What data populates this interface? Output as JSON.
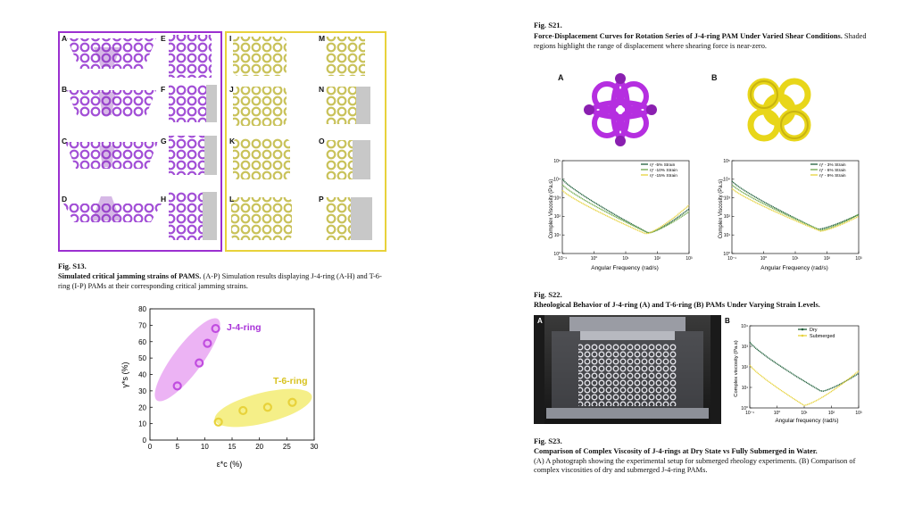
{
  "fig_s13": {
    "panel_letters": [
      "A",
      "B",
      "C",
      "D",
      "E",
      "F",
      "G",
      "H",
      "I",
      "J",
      "K",
      "L",
      "M",
      "N",
      "O",
      "P"
    ],
    "label": "Fig. S13.",
    "title": "Simulated critical jamming strains of PAMS.",
    "body": " (A-P) Simulation results displaying J-4-ring (A-H) and T-6-ring (I-P) PAMs at their corresponding critical jamming strains.",
    "colors": {
      "purple": "#9b30d0",
      "yellow": "#e8d23a"
    }
  },
  "jam_chart": {
    "chart_data": {
      "type": "scatter",
      "xlabel": "ε*c (%)",
      "ylabel": "γ*s (%)",
      "xlim": [
        0,
        30
      ],
      "ylim": [
        0,
        80
      ],
      "xticks": [
        "0",
        "5",
        "10",
        "15",
        "20",
        "25",
        "30"
      ],
      "yticks": [
        "0",
        "10",
        "20",
        "30",
        "40",
        "50",
        "60",
        "70",
        "80"
      ],
      "series": [
        {
          "name": "J-4-ring",
          "color": "#c14de0",
          "x": [
            5,
            9,
            10.5,
            12
          ],
          "y": [
            33,
            47,
            59,
            68
          ]
        },
        {
          "name": "T-6-ring",
          "color": "#e8d23a",
          "x": [
            12.5,
            17,
            21.5,
            26
          ],
          "y": [
            11,
            18,
            20,
            23
          ]
        }
      ]
    }
  },
  "fig_s21": {
    "label": "Fig. S21.",
    "title": "Force-Displacement Curves for Rotation Series of J-4-ring PAM Under Varied Shear Conditions.",
    "body": " Shaded regions highlight the range of displacement where shearing force is near-zero.",
    "panel_a": "A",
    "panel_b": "B",
    "chart_a": {
      "chart_data": {
        "type": "line",
        "xlabel": "Angular Frequency (rad/s)",
        "ylabel": "Complex Viscosity (Pa.s)",
        "log_x": true,
        "log_y": true,
        "xticks": [
          "10⁻¹",
          "10⁰",
          "10¹",
          "10²",
          "10³"
        ],
        "yticks": [
          "10⁰",
          "10¹",
          "10²",
          "10³",
          "10⁴",
          "10⁵"
        ],
        "legend": "top-right",
        "series": [
          {
            "name": "η* -5% Strain",
            "color": "#1f5f3a"
          },
          {
            "name": "η* -10% Strain",
            "color": "#6ea84a"
          },
          {
            "name": "η* -15% Strain",
            "color": "#e6d23c"
          }
        ]
      }
    },
    "chart_b": {
      "chart_data": {
        "type": "line",
        "xlabel": "Angular Frequency (rad/s)",
        "ylabel": "Complex Viscosity (Pa.s)",
        "log_x": true,
        "log_y": true,
        "xticks": [
          "10⁻¹",
          "10⁰",
          "10¹",
          "10²",
          "10³"
        ],
        "yticks": [
          "10⁰",
          "10¹",
          "10²",
          "10³",
          "10⁴",
          "10⁵"
        ],
        "legend": "top-right",
        "series": [
          {
            "name": "η* - 3% Strain",
            "color": "#1f5f3a"
          },
          {
            "name": "η* - 6% Strain",
            "color": "#6ea84a"
          },
          {
            "name": "η* - 9% Strain",
            "color": "#e6d23c"
          }
        ]
      }
    }
  },
  "fig_s22": {
    "label": "Fig. S22.",
    "title": "Rheological Behavior of J-4-ring (A) and T-6-ring (B) PAMs Under Varying Strain Levels."
  },
  "fig_s23_panels": {
    "panel_a": "A",
    "panel_b": "B",
    "chart": {
      "chart_data": {
        "type": "line",
        "xlabel": "Angular frequency (rad/s)",
        "ylabel": "Complex viscosity (Pa.s)",
        "log_x": true,
        "log_y": true,
        "xticks": [
          "10⁻¹",
          "10⁰",
          "10¹",
          "10²",
          "10³"
        ],
        "yticks": [
          "10⁰",
          "10¹",
          "10²",
          "10³",
          "10⁴"
        ],
        "legend": "top-right",
        "series": [
          {
            "name": "Dry",
            "color": "#1f5f3a"
          },
          {
            "name": "Submerged",
            "color": "#e6d23c"
          }
        ]
      }
    }
  },
  "fig_s23": {
    "label": "Fig. S23.",
    "title": "Comparison of Complex Viscosity of J-4-rings at Dry State vs Fully Submerged in Water.",
    "body": "(A) A photograph showing the experimental setup for submerged rheology experiments. (B) Comparison of complex viscosities of dry and submerged J-4-ring PAMs."
  }
}
